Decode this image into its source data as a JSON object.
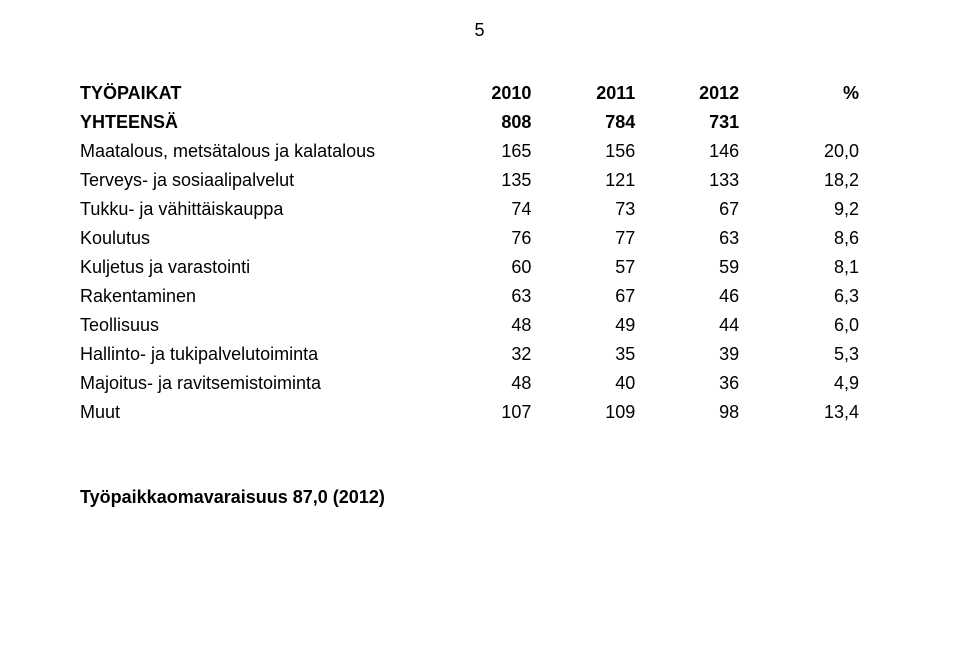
{
  "page_number": "5",
  "table": {
    "columns": [
      "TYÖPAIKAT",
      "2010",
      "2011",
      "2012",
      "%"
    ],
    "total_row": {
      "label": "YHTEENSÄ",
      "v2010": "808",
      "v2011": "784",
      "v2012": "731",
      "pct": ""
    },
    "rows": [
      {
        "label": "Maatalous, metsätalous ja kalatalous",
        "v2010": "165",
        "v2011": "156",
        "v2012": "146",
        "pct": "20,0"
      },
      {
        "label": "Terveys- ja sosiaalipalvelut",
        "v2010": "135",
        "v2011": "121",
        "v2012": "133",
        "pct": "18,2"
      },
      {
        "label": "Tukku- ja vähittäiskauppa",
        "v2010": "74",
        "v2011": "73",
        "v2012": "67",
        "pct": "9,2"
      },
      {
        "label": "Koulutus",
        "v2010": "76",
        "v2011": "77",
        "v2012": "63",
        "pct": "8,6"
      },
      {
        "label": "Kuljetus ja varastointi",
        "v2010": "60",
        "v2011": "57",
        "v2012": "59",
        "pct": "8,1"
      },
      {
        "label": "Rakentaminen",
        "v2010": "63",
        "v2011": "67",
        "v2012": "46",
        "pct": "6,3"
      },
      {
        "label": "Teollisuus",
        "v2010": "48",
        "v2011": "49",
        "v2012": "44",
        "pct": "6,0"
      },
      {
        "label": "Hallinto- ja tukipalvelutoiminta",
        "v2010": "32",
        "v2011": "35",
        "v2012": "39",
        "pct": "5,3"
      },
      {
        "label": "Majoitus- ja ravitsemistoiminta",
        "v2010": "48",
        "v2011": "40",
        "v2012": "36",
        "pct": "4,9"
      },
      {
        "label": "Muut",
        "v2010": "107",
        "v2011": "109",
        "v2012": "98",
        "pct": "13,4"
      }
    ]
  },
  "footer_text": "Työpaikkaomavaraisuus 87,0 (2012)",
  "styles": {
    "font_family": "Arial",
    "text_color": "#000000",
    "background_color": "#ffffff",
    "page_number_fontsize": 18,
    "header_fontsize": 18,
    "body_fontsize": 18,
    "footer_fontsize": 18
  }
}
